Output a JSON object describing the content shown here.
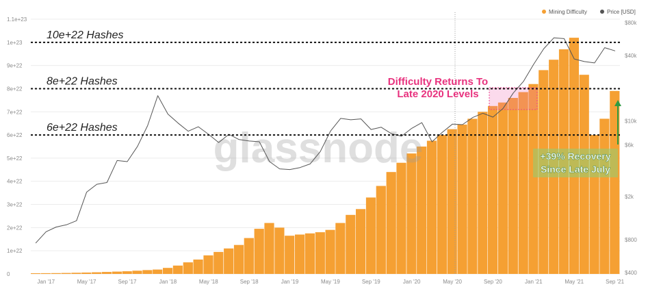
{
  "chart_data": {
    "type": "bar",
    "legend": {
      "placement": "top-right",
      "items": [
        {
          "label": "Mining Difficulty",
          "color": "#f5a033"
        },
        {
          "label": "Price [USD]",
          "color": "#555555"
        }
      ]
    },
    "x_ticks": [
      "Jan '17",
      "May '17",
      "Sep '17",
      "Jan '18",
      "May '18",
      "Sep '18",
      "Jan '19",
      "May '19",
      "Sep '19",
      "Jan '20",
      "May '20",
      "Sep '20",
      "Jan '21",
      "May '21",
      "Sep '21"
    ],
    "left_axis": {
      "ticks": [
        "0",
        "1e+22",
        "2e+22",
        "3e+22",
        "4e+22",
        "5e+22",
        "6e+22",
        "7e+22",
        "8e+22",
        "9e+22",
        "1e+23",
        "1.1e+23"
      ],
      "ylim": [
        0,
        1.1e+23
      ]
    },
    "right_axis": {
      "scale": "log",
      "ticks": [
        "$400",
        "$800",
        "$2k",
        "$6k",
        "$10k",
        "$40k",
        "$80k"
      ],
      "tick_values": [
        400,
        800,
        2000,
        6000,
        10000,
        40000,
        80000
      ]
    },
    "watermark": "glassnode",
    "reference_lines": [
      {
        "label": "10e+22 Hashes",
        "value": 1e+23
      },
      {
        "label": "8e+22 Hashes",
        "value": 8e+22
      },
      {
        "label": "6e+22 Hashes",
        "value": 6e+22
      }
    ],
    "annotations": {
      "difficulty_note": [
        "Difficulty Returns To",
        "Late 2020 Levels"
      ],
      "recovery_note": [
        "+39% Recovery",
        "Since Late July"
      ]
    },
    "series": [
      {
        "name": "Mining Difficulty",
        "color": "#f5a033",
        "x": [
          "2016-12",
          "2017-01",
          "2017-02",
          "2017-03",
          "2017-04",
          "2017-05",
          "2017-06",
          "2017-07",
          "2017-08",
          "2017-09",
          "2017-10",
          "2017-11",
          "2017-12",
          "2018-01",
          "2018-02",
          "2018-03",
          "2018-04",
          "2018-05",
          "2018-06",
          "2018-07",
          "2018-08",
          "2018-09",
          "2018-10",
          "2018-11",
          "2018-12",
          "2019-01",
          "2019-02",
          "2019-03",
          "2019-04",
          "2019-05",
          "2019-06",
          "2019-07",
          "2019-08",
          "2019-09",
          "2019-10",
          "2019-11",
          "2019-12",
          "2020-01",
          "2020-02",
          "2020-03",
          "2020-04",
          "2020-05",
          "2020-06",
          "2020-07",
          "2020-08",
          "2020-09",
          "2020-10",
          "2020-11",
          "2020-12",
          "2021-01",
          "2021-02",
          "2021-03",
          "2021-04",
          "2021-05",
          "2021-06",
          "2021-07",
          "2021-08",
          "2021-09"
        ],
        "values": [
          3e+20,
          3.2e+20,
          3.5e+20,
          4e+20,
          5e+20,
          6e+20,
          7.2e+20,
          8.5e+20,
          1e+21,
          1.15e+21,
          1.4e+21,
          1.65e+21,
          1.9e+21,
          2.6e+21,
          3.6e+21,
          5e+21,
          6.2e+21,
          8e+21,
          9.5e+21,
          1.1e+22,
          1.25e+22,
          1.55e+22,
          1.95e+22,
          2.2e+22,
          2e+22,
          1.65e+22,
          1.7e+22,
          1.75e+22,
          1.8e+22,
          1.9e+22,
          2.2e+22,
          2.55e+22,
          2.8e+22,
          3.3e+22,
          3.8e+22,
          4.4e+22,
          4.8e+22,
          5.2e+22,
          5.5e+22,
          5.75e+22,
          6e+22,
          6.25e+22,
          6.45e+22,
          6.7e+22,
          7e+22,
          7.25e+22,
          7.4e+22,
          7.6e+22,
          7.85e+22,
          8.2e+22,
          8.8e+22,
          9.25e+22,
          9.7e+22,
          1.02e+23,
          8.6e+22,
          6e+22,
          6.7e+22,
          7.9e+22
        ]
      },
      {
        "name": "Price [USD]",
        "color": "#555555",
        "x": [
          "2016-12",
          "2017-01",
          "2017-02",
          "2017-03",
          "2017-04",
          "2017-05",
          "2017-06",
          "2017-07",
          "2017-08",
          "2017-09",
          "2017-10",
          "2017-11",
          "2017-12",
          "2018-01",
          "2018-02",
          "2018-03",
          "2018-04",
          "2018-05",
          "2018-06",
          "2018-07",
          "2018-08",
          "2018-09",
          "2018-10",
          "2018-11",
          "2018-12",
          "2019-01",
          "2019-02",
          "2019-03",
          "2019-04",
          "2019-05",
          "2019-06",
          "2019-07",
          "2019-08",
          "2019-09",
          "2019-10",
          "2019-11",
          "2019-12",
          "2020-01",
          "2020-02",
          "2020-03",
          "2020-04",
          "2020-05",
          "2020-06",
          "2020-07",
          "2020-08",
          "2020-09",
          "2020-10",
          "2020-11",
          "2020-12",
          "2021-01",
          "2021-02",
          "2021-03",
          "2021-04",
          "2021-05",
          "2021-06",
          "2021-07",
          "2021-08",
          "2021-09"
        ],
        "values": [
          750,
          950,
          1050,
          1100,
          1200,
          2200,
          2600,
          2700,
          4300,
          4200,
          5800,
          9000,
          17000,
          11500,
          9500,
          8000,
          8800,
          7500,
          6300,
          7500,
          6700,
          6500,
          6400,
          4200,
          3600,
          3550,
          3700,
          4000,
          5200,
          8000,
          10500,
          10200,
          10400,
          8300,
          8700,
          7600,
          7200,
          8500,
          9600,
          6400,
          7800,
          9300,
          9200,
          10700,
          11700,
          10800,
          13000,
          18000,
          23000,
          33000,
          46000,
          58000,
          57000,
          37000,
          35000,
          34000,
          47000,
          44000
        ]
      }
    ]
  }
}
